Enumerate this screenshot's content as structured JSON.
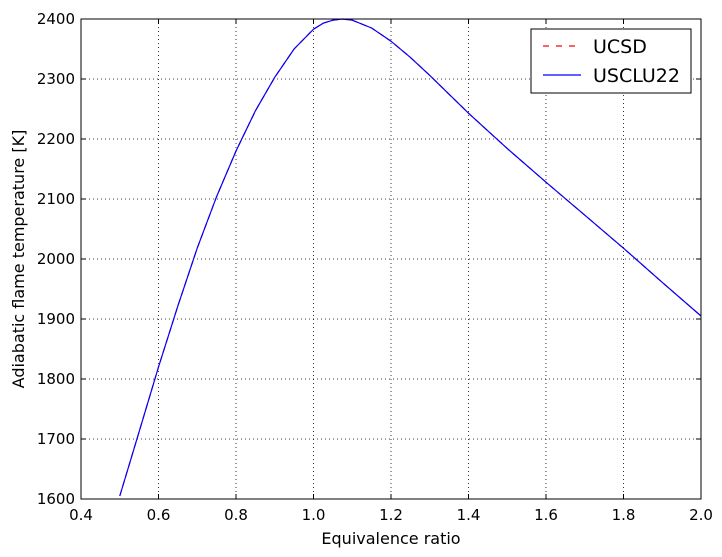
{
  "chart_data": {
    "type": "line",
    "title": "",
    "xlabel": "Equivalence ratio",
    "ylabel": "Adiabatic flame temperature [K]",
    "xlim": [
      0.4,
      2.0
    ],
    "ylim": [
      1600,
      2400
    ],
    "xticks": [
      0.4,
      0.6,
      0.8,
      1.0,
      1.2,
      1.4,
      1.6,
      1.8,
      2.0
    ],
    "xtick_labels": [
      "0.4",
      "0.6",
      "0.8",
      "1.0",
      "1.2",
      "1.4",
      "1.6",
      "1.8",
      "2.0"
    ],
    "yticks": [
      1600,
      1700,
      1800,
      1900,
      2000,
      2100,
      2200,
      2300,
      2400
    ],
    "ytick_labels": [
      "1600",
      "1700",
      "1800",
      "1900",
      "2000",
      "2100",
      "2200",
      "2300",
      "2400"
    ],
    "grid": true,
    "legend_position": "top-right",
    "x": [
      0.5,
      0.55,
      0.6,
      0.65,
      0.7,
      0.75,
      0.8,
      0.85,
      0.9,
      0.95,
      1.0,
      1.025,
      1.05,
      1.075,
      1.1,
      1.15,
      1.2,
      1.25,
      1.3,
      1.4,
      1.5,
      1.6,
      1.7,
      1.8,
      1.9,
      2.0
    ],
    "series": [
      {
        "name": "UCSD",
        "color": "#ff0000",
        "linestyle": "dashed",
        "values": [
          1605,
          1712,
          1820,
          1922,
          2018,
          2104,
          2180,
          2247,
          2303,
          2350,
          2383,
          2393,
          2398,
          2400,
          2398,
          2385,
          2363,
          2336,
          2306,
          2243,
          2184,
          2128,
          2073,
          2018,
          1961,
          1905
        ]
      },
      {
        "name": "USCLU22",
        "color": "#0000ff",
        "linestyle": "solid",
        "values": [
          1605,
          1712,
          1820,
          1922,
          2018,
          2104,
          2180,
          2247,
          2303,
          2350,
          2383,
          2393,
          2398,
          2400,
          2398,
          2385,
          2363,
          2336,
          2306,
          2243,
          2184,
          2128,
          2073,
          2018,
          1961,
          1905
        ]
      }
    ]
  }
}
